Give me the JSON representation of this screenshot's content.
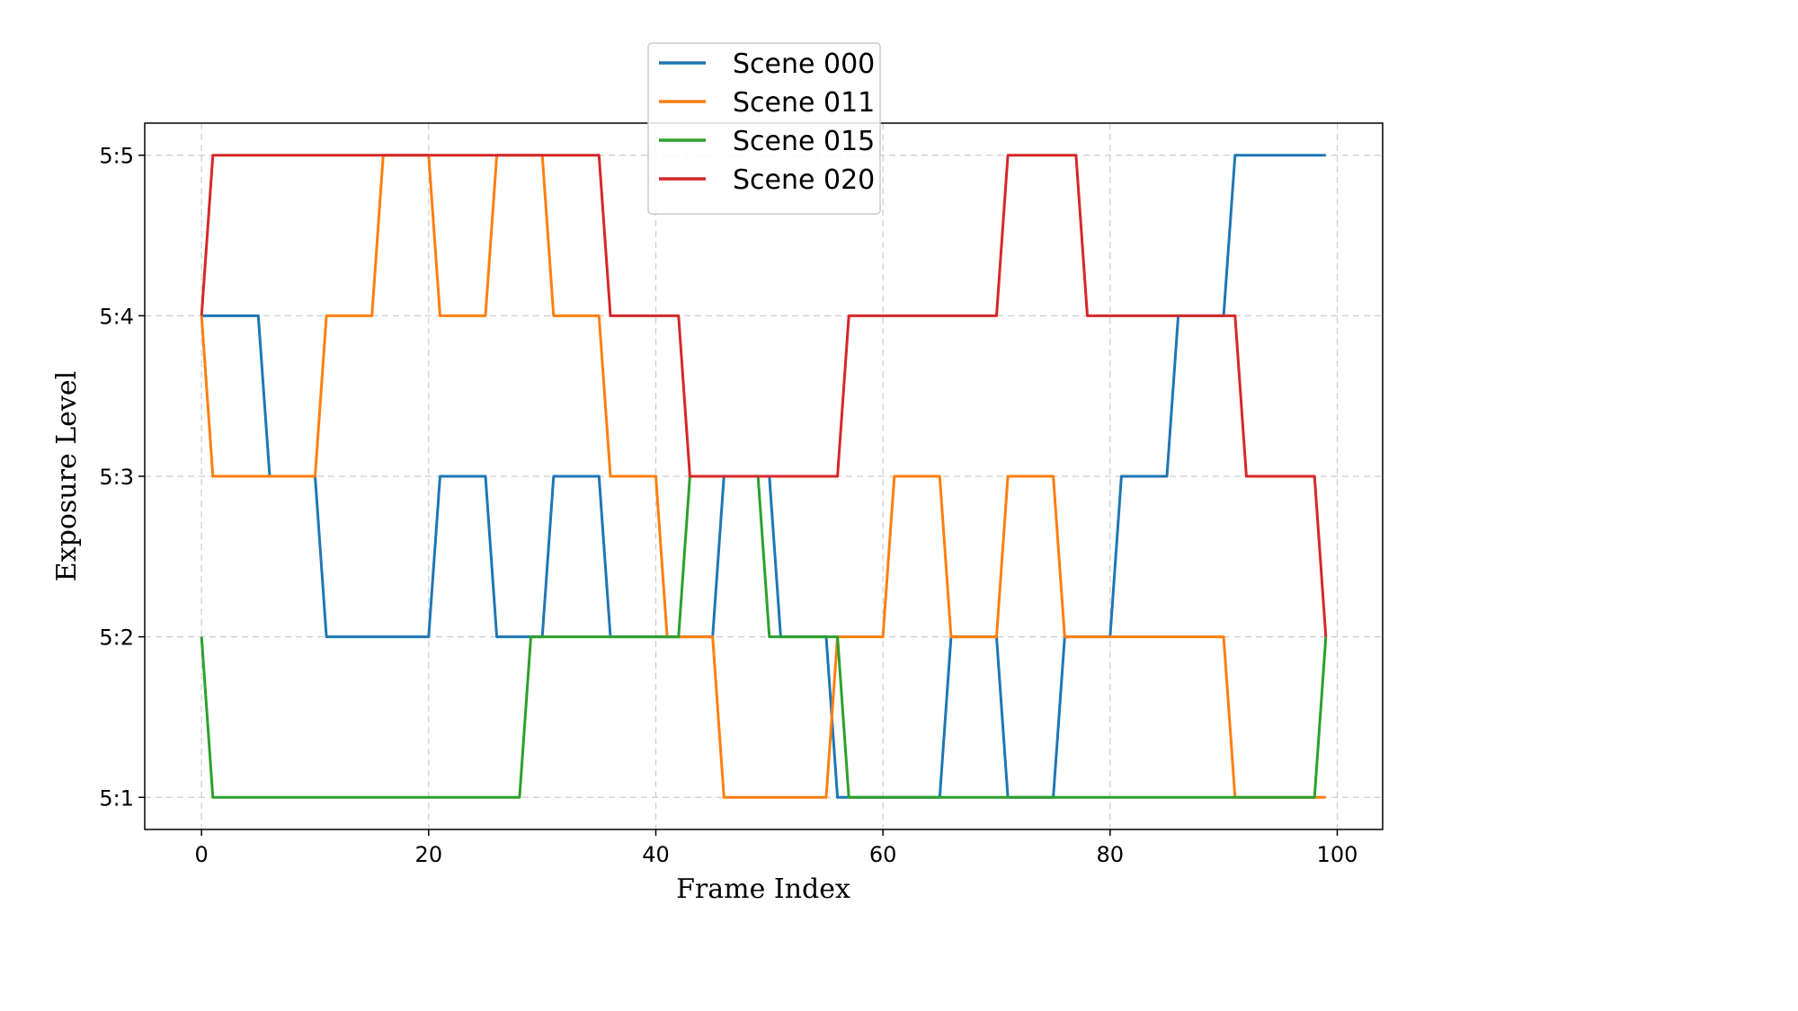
{
  "chart_data": {
    "type": "line",
    "title": "",
    "xlabel": "Frame Index",
    "ylabel": "Exposure Level",
    "xlim": [
      -5,
      104
    ],
    "ylim": [
      0.8,
      5.2
    ],
    "x_ticks": [
      0,
      20,
      40,
      60,
      80,
      100
    ],
    "x_tick_labels": [
      "0",
      "20",
      "40",
      "60",
      "80",
      "100"
    ],
    "y_ticks": [
      1,
      2,
      3,
      4,
      5
    ],
    "y_tick_labels": [
      "5:1",
      "5:2",
      "5:3",
      "5:4",
      "5:5"
    ],
    "grid": true,
    "legend_position": "top-center",
    "series": [
      {
        "name": "Scene 000",
        "color": "#1f77b4",
        "x": [
          0,
          5,
          6,
          10,
          11,
          20,
          21,
          25,
          26,
          30,
          31,
          35,
          36,
          45,
          46,
          50,
          51,
          55,
          56,
          65,
          66,
          70,
          71,
          75,
          76,
          80,
          81,
          85,
          86,
          90,
          91,
          99
        ],
        "values": [
          4,
          4,
          3,
          3,
          2,
          2,
          3,
          3,
          2,
          2,
          3,
          3,
          2,
          2,
          3,
          3,
          2,
          2,
          1,
          1,
          2,
          2,
          1,
          1,
          2,
          2,
          3,
          3,
          4,
          4,
          5,
          5
        ]
      },
      {
        "name": "Scene 011",
        "color": "#ff7f0e",
        "x": [
          0,
          1,
          10,
          11,
          15,
          16,
          20,
          21,
          25,
          26,
          30,
          31,
          35,
          36,
          40,
          41,
          45,
          46,
          55,
          56,
          60,
          61,
          65,
          66,
          70,
          71,
          75,
          76,
          90,
          91,
          99
        ],
        "values": [
          4,
          3,
          3,
          4,
          4,
          5,
          5,
          4,
          4,
          5,
          5,
          4,
          4,
          3,
          3,
          2,
          2,
          1,
          1,
          2,
          2,
          3,
          3,
          2,
          2,
          3,
          3,
          2,
          2,
          1,
          1
        ]
      },
      {
        "name": "Scene 015",
        "color": "#2ca02c",
        "x": [
          0,
          1,
          28,
          29,
          42,
          43,
          49,
          50,
          56,
          57,
          98,
          99
        ],
        "values": [
          2,
          1,
          1,
          2,
          2,
          3,
          3,
          2,
          2,
          1,
          1,
          2
        ]
      },
      {
        "name": "Scene 020",
        "color": "#d62728",
        "x": [
          0,
          1,
          35,
          36,
          42,
          43,
          56,
          57,
          70,
          71,
          77,
          78,
          91,
          92,
          98,
          99
        ],
        "values": [
          4,
          5,
          5,
          4,
          4,
          3,
          3,
          4,
          4,
          5,
          5,
          4,
          4,
          3,
          3,
          2
        ]
      }
    ]
  }
}
